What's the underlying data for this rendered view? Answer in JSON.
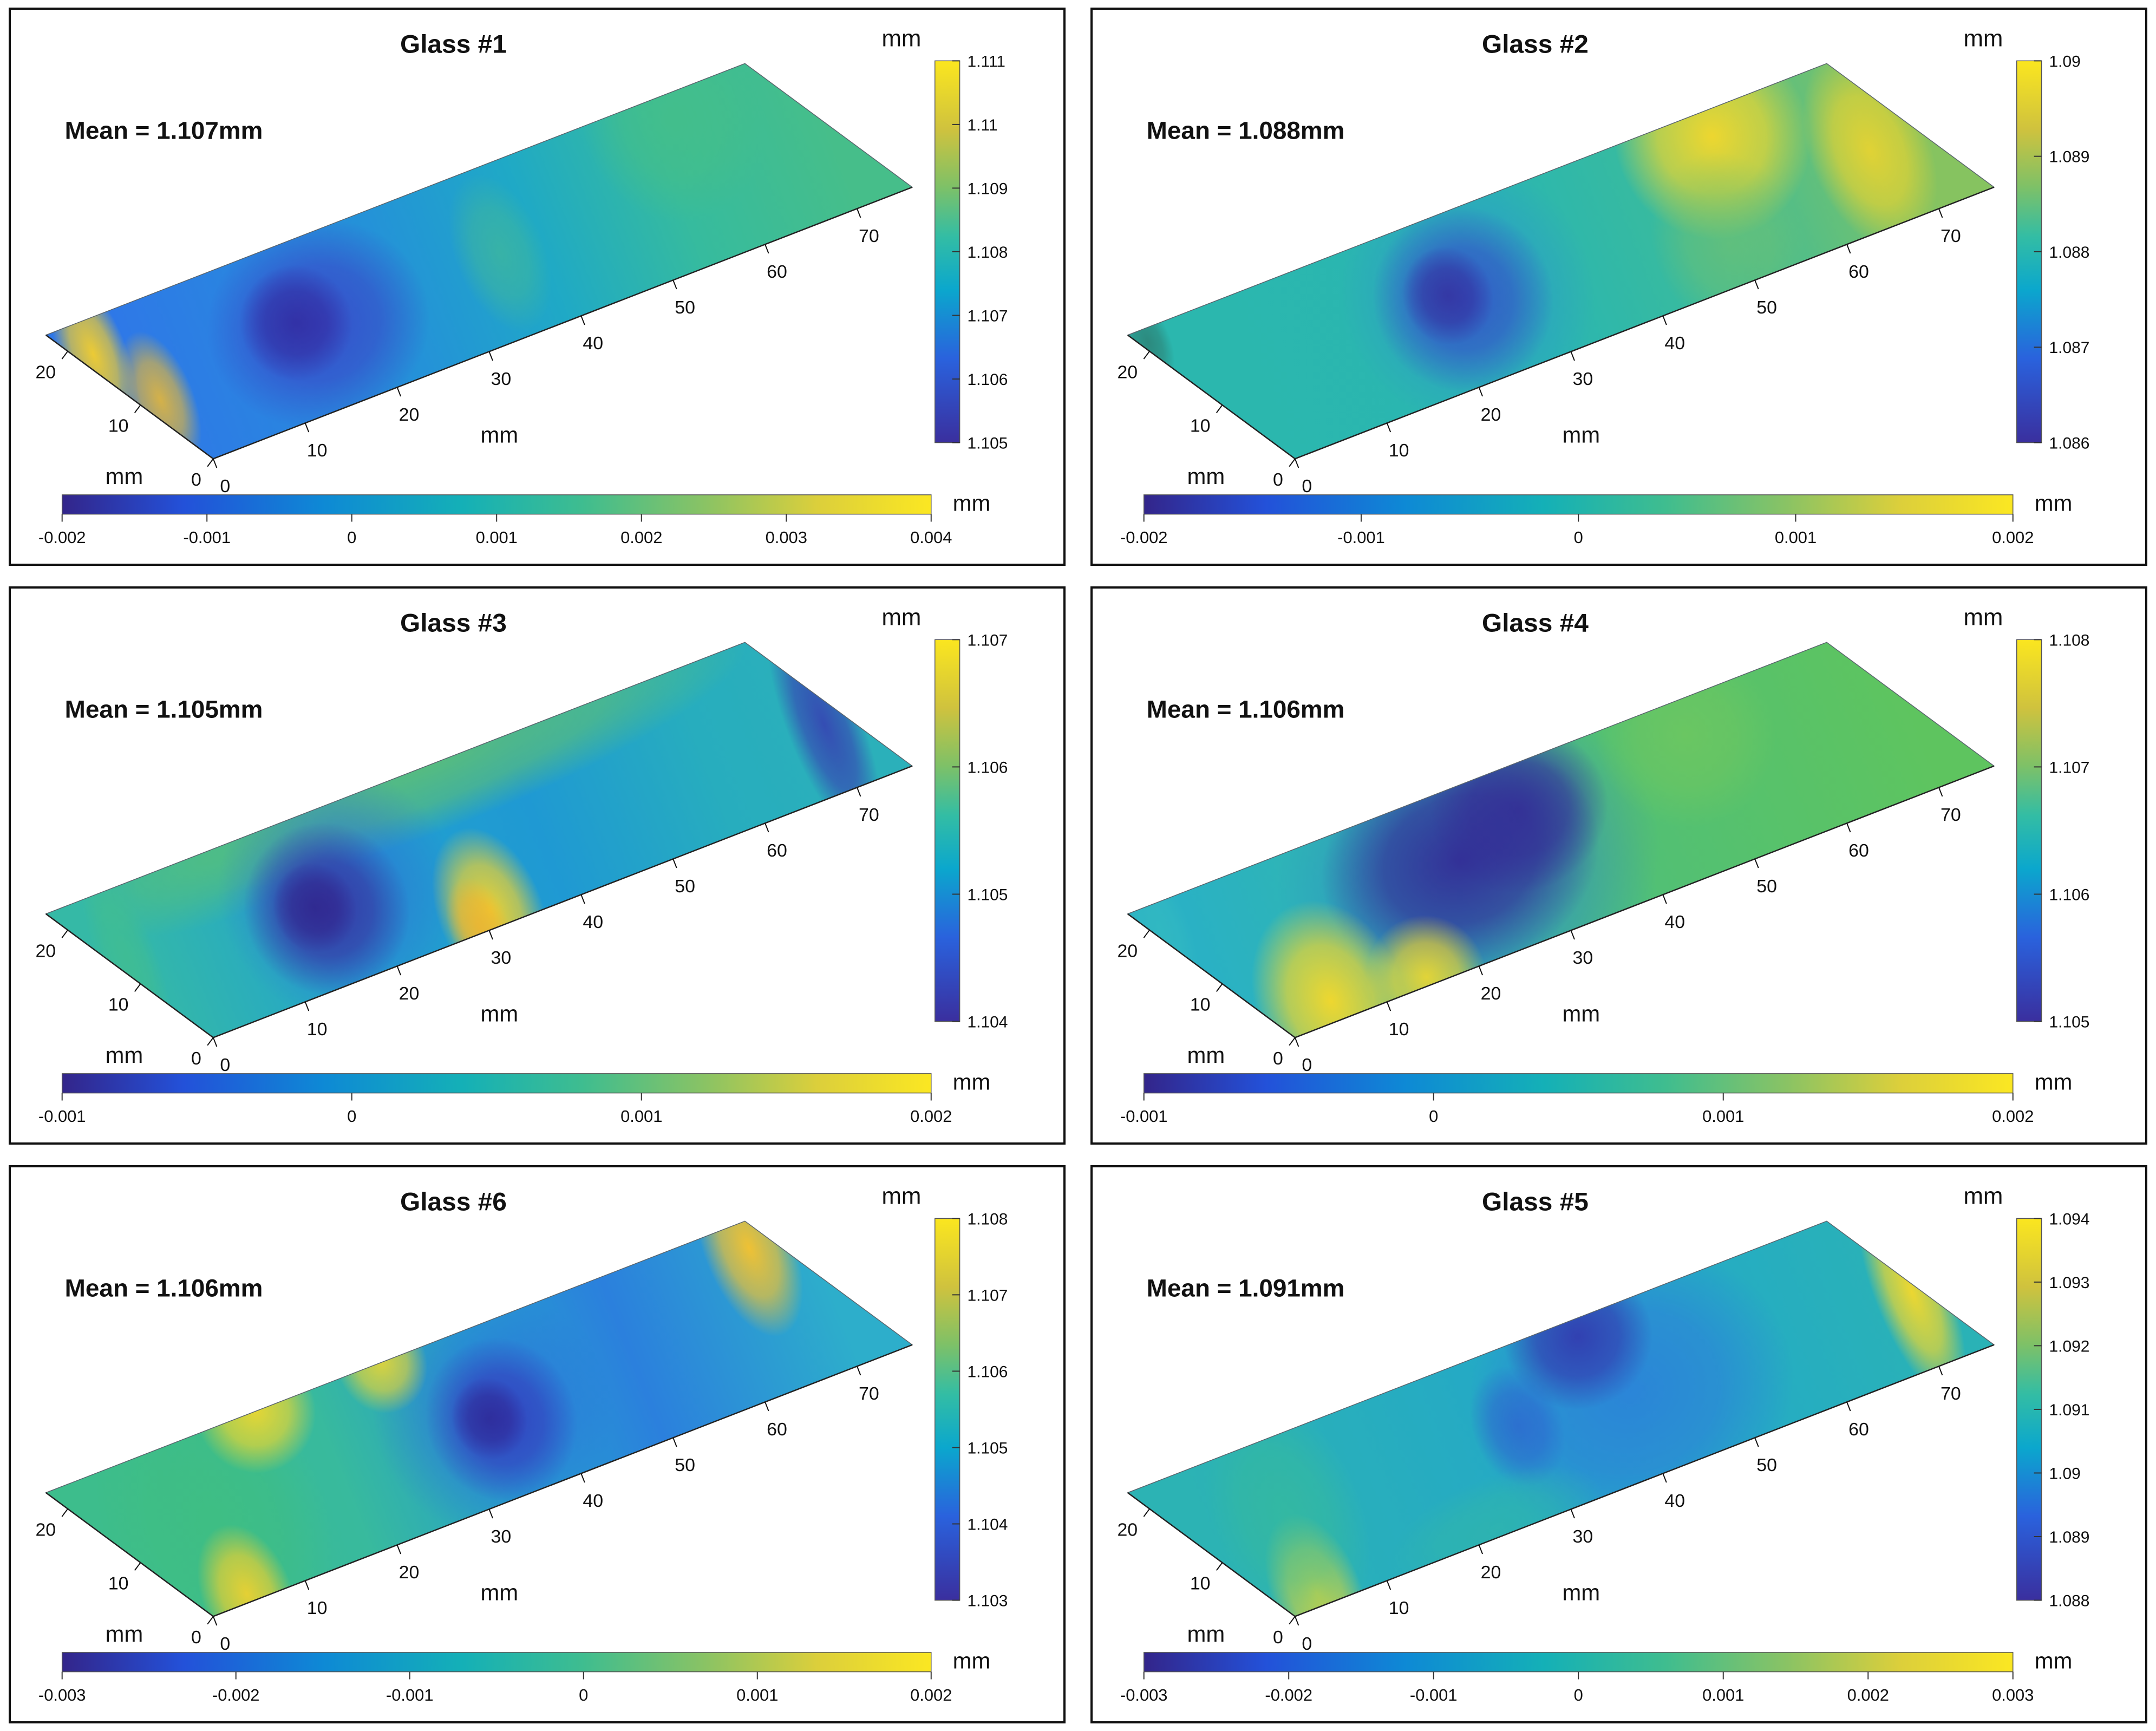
{
  "figure": {
    "unit_label": "mm",
    "colormap": "parula",
    "x_axis": {
      "label": "mm",
      "ticks": [
        "0",
        "10",
        "20",
        "30",
        "40",
        "50",
        "60",
        "70"
      ]
    },
    "y_axis": {
      "label": "mm",
      "ticks": [
        "0",
        "10",
        "20"
      ]
    },
    "accent_colors": {
      "surface_low": "#352a87",
      "surface_mid": "#14b0b7",
      "surface_high": "#fbe722"
    }
  },
  "chart_data": [
    {
      "type": "heatmap",
      "title": "Glass #1",
      "mean_label": "Mean = 1.107mm",
      "mean_mm": 1.107,
      "xlabel": "mm",
      "ylabel": "mm",
      "x_ticks_mm": [
        0,
        10,
        20,
        30,
        40,
        50,
        60,
        70
      ],
      "y_ticks_mm": [
        0,
        10,
        20
      ],
      "thickness_colorbar": {
        "unit": "mm",
        "range_mm": [
          1.105,
          1.111
        ],
        "ticks": [
          "1.111",
          "1.11",
          "1.109",
          "1.108",
          "1.107",
          "1.106",
          "1.105"
        ],
        "tick_values": [
          1.111,
          1.11,
          1.109,
          1.108,
          1.107,
          1.106,
          1.105
        ]
      },
      "deviation_colorbar": {
        "unit": "mm",
        "range_mm": [
          -0.002,
          0.004
        ],
        "ticks": [
          "-0.002",
          "-0.001",
          "0",
          "0.001",
          "0.002",
          "0.003",
          "0.004"
        ],
        "tick_values": [
          -0.002,
          -0.001,
          0,
          0.001,
          0.002,
          0.003,
          0.004
        ]
      },
      "surface_description": "Mostly light blue; dark-blue depression left of center; greener toward the far right end; yellow high spot at the near-left corner"
    },
    {
      "type": "heatmap",
      "title": "Glass #2",
      "mean_label": "Mean = 1.088mm",
      "mean_mm": 1.088,
      "xlabel": "mm",
      "ylabel": "mm",
      "x_ticks_mm": [
        0,
        10,
        20,
        30,
        40,
        50,
        60,
        70
      ],
      "y_ticks_mm": [
        0,
        10,
        20
      ],
      "thickness_colorbar": {
        "unit": "mm",
        "range_mm": [
          1.086,
          1.09
        ],
        "ticks": [
          "1.09",
          "1.089",
          "1.088",
          "1.087",
          "1.086"
        ],
        "tick_values": [
          1.09,
          1.089,
          1.088,
          1.087,
          1.086
        ]
      },
      "deviation_colorbar": {
        "unit": "mm",
        "range_mm": [
          -0.002,
          0.002
        ],
        "ticks": [
          "-0.002",
          "-0.001",
          "0",
          "0.001",
          "0.002"
        ],
        "tick_values": [
          -0.002,
          -0.001,
          0,
          0.001,
          0.002
        ]
      },
      "surface_description": "Teal-green overall; dark-blue depression left of center; broad yellow high region along the far right and top-right edge"
    },
    {
      "type": "heatmap",
      "title": "Glass #3",
      "mean_label": "Mean = 1.105mm",
      "mean_mm": 1.105,
      "xlabel": "mm",
      "ylabel": "mm",
      "x_ticks_mm": [
        0,
        10,
        20,
        30,
        40,
        50,
        60,
        70
      ],
      "y_ticks_mm": [
        0,
        10,
        20
      ],
      "thickness_colorbar": {
        "unit": "mm",
        "range_mm": [
          1.104,
          1.107
        ],
        "ticks": [
          "1.107",
          "1.106",
          "1.105",
          "1.104"
        ],
        "tick_values": [
          1.107,
          1.106,
          1.105,
          1.104
        ]
      },
      "deviation_colorbar": {
        "unit": "mm",
        "range_mm": [
          -0.001,
          0.002
        ],
        "ticks": [
          "-0.001",
          "0",
          "0.001",
          "0.002"
        ],
        "tick_values": [
          -0.001,
          0,
          0.001,
          0.002
        ]
      },
      "surface_description": "Green along the far edge; cyan mid-field; dark-blue depression on the left; yellow spot near the 30-40 mm front edge; dark-blue streak at the right end"
    },
    {
      "type": "heatmap",
      "title": "Glass #4",
      "mean_label": "Mean = 1.106mm",
      "mean_mm": 1.106,
      "xlabel": "mm",
      "ylabel": "mm",
      "x_ticks_mm": [
        0,
        10,
        20,
        30,
        40,
        50,
        60,
        70
      ],
      "y_ticks_mm": [
        0,
        10,
        20
      ],
      "thickness_colorbar": {
        "unit": "mm",
        "range_mm": [
          1.105,
          1.108
        ],
        "ticks": [
          "1.108",
          "1.107",
          "1.106",
          "1.105"
        ],
        "tick_values": [
          1.108,
          1.107,
          1.106,
          1.105
        ]
      },
      "deviation_colorbar": {
        "unit": "mm",
        "range_mm": [
          -0.001,
          0.002
        ],
        "ticks": [
          "-0.001",
          "0",
          "0.001",
          "0.002"
        ],
        "tick_values": [
          -0.001,
          0,
          0.001,
          0.002
        ]
      },
      "surface_description": "Green right half; large dark-blue depression across the center-left; yellow high region near the origin corner; cyan left tip"
    },
    {
      "type": "heatmap",
      "title": "Glass #6",
      "mean_label": "Mean = 1.106mm",
      "mean_mm": 1.106,
      "xlabel": "mm",
      "ylabel": "mm",
      "x_ticks_mm": [
        0,
        10,
        20,
        30,
        40,
        50,
        60,
        70
      ],
      "y_ticks_mm": [
        0,
        10,
        20
      ],
      "thickness_colorbar": {
        "unit": "mm",
        "range_mm": [
          1.103,
          1.108
        ],
        "ticks": [
          "1.108",
          "1.107",
          "1.106",
          "1.105",
          "1.104",
          "1.103"
        ],
        "tick_values": [
          1.108,
          1.107,
          1.106,
          1.105,
          1.104,
          1.103
        ]
      },
      "deviation_colorbar": {
        "unit": "mm",
        "range_mm": [
          -0.003,
          0.002
        ],
        "ticks": [
          "-0.003",
          "-0.002",
          "-0.001",
          "0",
          "0.001",
          "0.002"
        ],
        "tick_values": [
          -0.003,
          -0.002,
          -0.001,
          0,
          0.001,
          0.002
        ]
      },
      "surface_description": "Green near half; blue far half with dark-blue depression in the center; yellow patches along the back edge, at the right tip and near the origin"
    },
    {
      "type": "heatmap",
      "title": "Glass #5",
      "mean_label": "Mean = 1.091mm",
      "mean_mm": 1.091,
      "xlabel": "mm",
      "ylabel": "mm",
      "x_ticks_mm": [
        0,
        10,
        20,
        30,
        40,
        50,
        60,
        70
      ],
      "y_ticks_mm": [
        0,
        10,
        20
      ],
      "thickness_colorbar": {
        "unit": "mm",
        "range_mm": [
          1.088,
          1.094
        ],
        "ticks": [
          "1.094",
          "1.093",
          "1.092",
          "1.091",
          "1.09",
          "1.089",
          "1.088"
        ],
        "tick_values": [
          1.094,
          1.093,
          1.092,
          1.091,
          1.09,
          1.089,
          1.088
        ]
      },
      "deviation_colorbar": {
        "unit": "mm",
        "range_mm": [
          -0.003,
          0.003
        ],
        "ticks": [
          "-0.003",
          "-0.002",
          "-0.001",
          "0",
          "0.001",
          "0.002",
          "0.003"
        ],
        "tick_values": [
          -0.003,
          -0.002,
          -0.001,
          0,
          0.001,
          0.002,
          0.003
        ]
      },
      "surface_description": "Cyan-teal overall; broad blue band across the far half with dark-blue spot at the back; yellow highs at the right corner and near the origin"
    }
  ]
}
